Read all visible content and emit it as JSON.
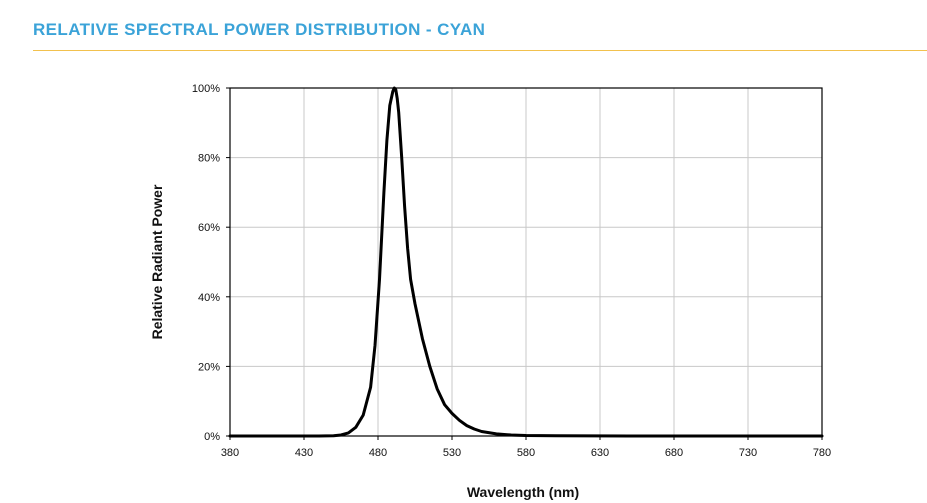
{
  "header": {
    "title": "RELATIVE SPECTRAL POWER DISTRIBUTION - CYAN",
    "title_color": "#3ba3d8",
    "rule_color": "#f2c14e"
  },
  "chart_data": {
    "type": "line",
    "title": "",
    "xlabel": "Wavelength (nm)",
    "ylabel": "Relative Radiant Power",
    "xlim": [
      380,
      780
    ],
    "ylim": [
      0,
      100
    ],
    "xticks": [
      380,
      430,
      480,
      530,
      580,
      630,
      680,
      730,
      780
    ],
    "yticks": [
      0,
      20,
      40,
      60,
      80,
      100
    ],
    "ytick_labels": [
      "0%",
      "20%",
      "40%",
      "60%",
      "80%",
      "100%"
    ],
    "grid": true,
    "legend": "none",
    "series": [
      {
        "color": "#000000",
        "x": [
          380,
          440,
          450,
          455,
          460,
          465,
          470,
          475,
          478,
          481,
          484,
          486,
          488,
          490,
          491,
          492,
          493,
          494,
          496,
          498,
          500,
          502,
          505,
          510,
          515,
          520,
          525,
          530,
          535,
          540,
          545,
          550,
          560,
          570,
          580,
          600,
          650,
          700,
          780
        ],
        "y": [
          0,
          0,
          0.1,
          0.3,
          0.9,
          2.5,
          6,
          14,
          26,
          45,
          70,
          85,
          95,
          99,
          100,
          99.5,
          97,
          93,
          80,
          66,
          54,
          45,
          38,
          28,
          20,
          13.5,
          9,
          6.5,
          4.5,
          3,
          2,
          1.3,
          0.6,
          0.3,
          0.15,
          0.05,
          0,
          0,
          0
        ]
      }
    ]
  }
}
